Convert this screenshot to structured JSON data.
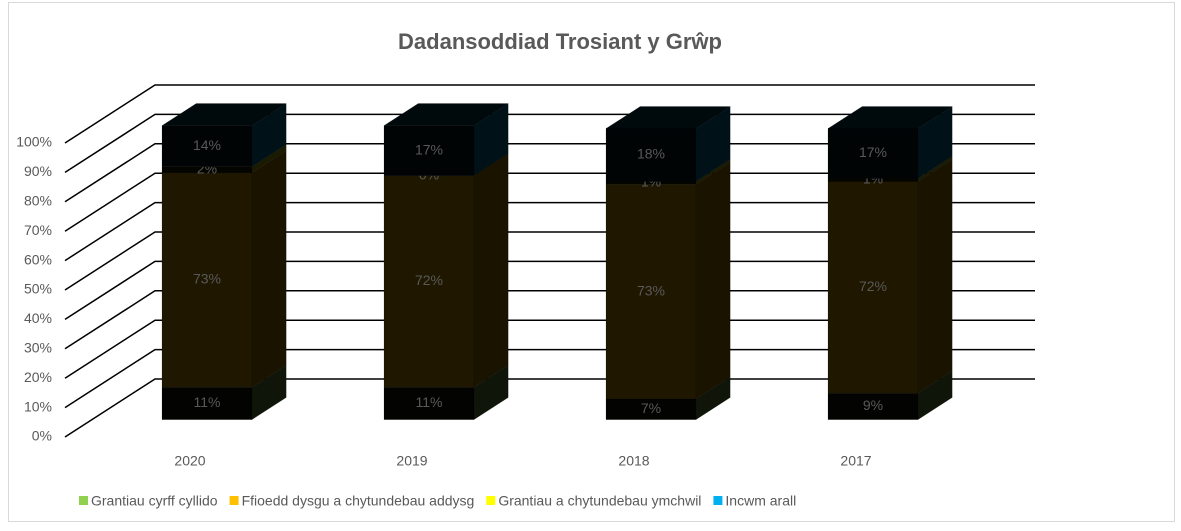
{
  "chart_data": {
    "type": "bar3d_stacked",
    "title": "Dadansoddiad Trosiant y Grŵp",
    "categories": [
      "2020",
      "2019",
      "2018",
      "2017"
    ],
    "series": [
      {
        "name": "Grantiau cyrff cyllido",
        "color": "#92d050",
        "values": [
          11,
          11,
          7,
          9
        ],
        "value_labels": [
          "11%",
          "11%",
          "7%",
          "9%"
        ]
      },
      {
        "name": "Ffioedd dysgu a chytundebau addysg",
        "color": "#ffc000",
        "values": [
          73,
          72,
          73,
          72
        ],
        "value_labels": [
          "73%",
          "72%",
          "73%",
          "72%"
        ]
      },
      {
        "name": "Grantiau a chytundebau ymchwil",
        "color": "#ffff00",
        "values": [
          2,
          0,
          1,
          1
        ],
        "value_labels": [
          "2%",
          "0%",
          "1%",
          "1%"
        ]
      },
      {
        "name": "Incwm arall",
        "color": "#00b0f0",
        "values": [
          14,
          17,
          18,
          17
        ],
        "value_labels": [
          "14%",
          "17%",
          "18%",
          "17%"
        ]
      }
    ],
    "ylim": [
      0,
      100
    ],
    "yticks": [
      {
        "value": 0,
        "label": "0%"
      },
      {
        "value": 10,
        "label": "10%"
      },
      {
        "value": 20,
        "label": "20%"
      },
      {
        "value": 30,
        "label": "30%"
      },
      {
        "value": 40,
        "label": "40%"
      },
      {
        "value": 50,
        "label": "50%"
      },
      {
        "value": 60,
        "label": "60%"
      },
      {
        "value": 70,
        "label": "70%"
      },
      {
        "value": 80,
        "label": "80%"
      },
      {
        "value": 90,
        "label": "90%"
      },
      {
        "value": 100,
        "label": "100%"
      }
    ],
    "grid": true,
    "legend": "bottom"
  }
}
